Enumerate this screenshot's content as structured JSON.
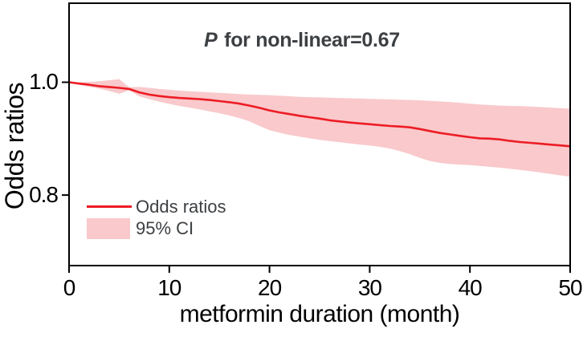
{
  "figure": {
    "background": "#ffffff",
    "annotation": {
      "p_symbol": "P",
      "text": " for non-linear=0.67"
    },
    "legend": {
      "position": "lower-left",
      "items": [
        {
          "swatch": "line",
          "label": "Odds ratios"
        },
        {
          "swatch": "fill",
          "label": "95% CI"
        }
      ]
    }
  },
  "chart_data": {
    "type": "line",
    "title": "P for non-linear=0.67",
    "xlabel": "metformin duration (month)",
    "ylabel": "Odds ratios",
    "xlim": [
      0,
      50
    ],
    "ylim": [
      0.675,
      1.14
    ],
    "x_ticks": [
      0,
      10,
      20,
      30,
      40,
      50
    ],
    "y_ticks": [
      0.8,
      1.0
    ],
    "grid": false,
    "legend_position": "lower-left",
    "x": [
      0,
      1,
      2,
      3,
      4,
      5,
      6,
      7,
      8,
      9,
      10,
      11,
      12,
      13,
      14,
      15,
      16,
      17,
      18,
      19,
      20,
      21,
      22,
      23,
      24,
      25,
      26,
      27,
      28,
      29,
      30,
      31,
      32,
      33,
      34,
      35,
      36,
      37,
      38,
      39,
      40,
      41,
      42,
      43,
      44,
      45,
      46,
      47,
      48,
      49,
      50
    ],
    "series": [
      {
        "name": "Odds ratios",
        "values": [
          1.0,
          0.9975,
          0.9955,
          0.993,
          0.9915,
          0.99,
          0.988,
          0.982,
          0.978,
          0.9755,
          0.9735,
          0.972,
          0.971,
          0.97,
          0.9685,
          0.9665,
          0.9645,
          0.962,
          0.9585,
          0.9545,
          0.95,
          0.9465,
          0.9435,
          0.9405,
          0.938,
          0.9355,
          0.9325,
          0.9305,
          0.9285,
          0.927,
          0.9255,
          0.924,
          0.9225,
          0.9215,
          0.92,
          0.917,
          0.9135,
          0.91,
          0.9075,
          0.905,
          0.9025,
          0.9005,
          0.9,
          0.8985,
          0.896,
          0.894,
          0.8925,
          0.891,
          0.8895,
          0.888,
          0.8865
        ]
      },
      {
        "name": "95% CI upper",
        "values": [
          1.0,
          1.0,
          1.0005,
          1.0015,
          1.0035,
          1.0055,
          0.991,
          0.9915,
          0.99,
          0.988,
          0.9865,
          0.985,
          0.984,
          0.983,
          0.982,
          0.981,
          0.98,
          0.979,
          0.978,
          0.9775,
          0.977,
          0.976,
          0.975,
          0.974,
          0.9735,
          0.973,
          0.9725,
          0.972,
          0.9715,
          0.971,
          0.9705,
          0.97,
          0.9695,
          0.969,
          0.9685,
          0.968,
          0.967,
          0.966,
          0.965,
          0.9635,
          0.962,
          0.9605,
          0.9595,
          0.9585,
          0.958,
          0.9575,
          0.957,
          0.956,
          0.955,
          0.954,
          0.953
        ]
      },
      {
        "name": "95% CI lower",
        "values": [
          1.0,
          0.9955,
          0.992,
          0.9885,
          0.9845,
          0.9795,
          0.9855,
          0.975,
          0.97,
          0.9655,
          0.9615,
          0.958,
          0.955,
          0.952,
          0.9485,
          0.945,
          0.941,
          0.9365,
          0.9305,
          0.9225,
          0.915,
          0.9105,
          0.9065,
          0.9035,
          0.9005,
          0.898,
          0.8955,
          0.8935,
          0.8915,
          0.8895,
          0.888,
          0.8855,
          0.8825,
          0.878,
          0.8725,
          0.866,
          0.8605,
          0.857,
          0.855,
          0.854,
          0.853,
          0.8515,
          0.85,
          0.8485,
          0.8465,
          0.8445,
          0.8425,
          0.84,
          0.8375,
          0.835,
          0.8325
        ]
      }
    ],
    "colors": {
      "line": "#ed1c24",
      "band": "#f9c9cb",
      "annotation_text": "#3d4043",
      "axis": "#000000"
    }
  }
}
